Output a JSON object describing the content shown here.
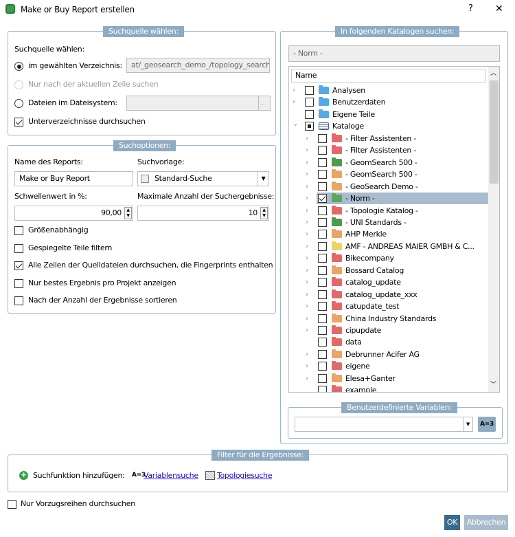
{
  "window": {
    "title": "Make or Buy Report erstellen",
    "help": "?",
    "close": "✕"
  },
  "source": {
    "legend": "Suchquelle wählen:",
    "label": "Suchquelle wählen:",
    "opt_dir": "im gewählten Verzeichnis:",
    "dir_value": "at/_geosearch_demo_/topology_search",
    "opt_row": "Nur nach der aktuellen Zeile suchen",
    "opt_files": "Dateien im Dateisystem:",
    "files_value": "",
    "browse": "...",
    "subdirs": "Unterverzeichnisse durchsuchen",
    "subdirs_checked": true,
    "selected": "dir"
  },
  "options": {
    "legend": "Suchoptionen:",
    "name_label": "Name des Reports:",
    "name_value": "Make or Buy Report",
    "template_label": "Suchvorlage:",
    "template_value": "Standard-Suche",
    "threshold_label": "Schwellenwert in %:",
    "threshold_value": "90,00",
    "max_label": "Maximale Anzahl der Suchergebnisse:",
    "max_value": "10",
    "checks": [
      {
        "label": "Größenabhängig",
        "checked": false
      },
      {
        "label": "Gespiegelte Teile filtern",
        "checked": false
      },
      {
        "label": "Alle Zeilen der Quelldateien durchsuchen, die Fingerprints enthalten",
        "checked": true
      },
      {
        "label": "Nur bestes Ergebnis pro Projekt anzeigen",
        "checked": false
      },
      {
        "label": "Nach der Anzahl der Ergebnisse sortieren",
        "checked": false
      }
    ]
  },
  "catalogs": {
    "legend": "In folgenden Katalogen suchen:",
    "selected_display": "- Norm -",
    "column": "Name",
    "items": [
      {
        "label": "Analysen",
        "level": 0,
        "expand": "collapsed",
        "check": "off",
        "color": "#5aa8e0"
      },
      {
        "label": "Benutzerdaten",
        "level": 0,
        "expand": "collapsed",
        "check": "off",
        "color": "#5aa8e0"
      },
      {
        "label": "Eigene Teile",
        "level": 0,
        "expand": "none",
        "check": "off",
        "color": "#5aa8e0"
      },
      {
        "label": "Kataloge",
        "level": 0,
        "expand": "expanded",
        "check": "partial",
        "color": "stack"
      },
      {
        "label": "- Filter Assistenten -",
        "level": 1,
        "expand": "collapsed",
        "check": "off",
        "color": "#e06a6a"
      },
      {
        "label": "- Filter Assistenten -",
        "level": 1,
        "expand": "collapsed",
        "check": "off",
        "color": "#e06a6a"
      },
      {
        "label": "- GeomSearch 500 -",
        "level": 1,
        "expand": "collapsed",
        "check": "off",
        "color": "#4e9a4e"
      },
      {
        "label": "- GeomSearch 500 -",
        "level": 1,
        "expand": "collapsed",
        "check": "off",
        "color": "#e8a566"
      },
      {
        "label": "- GeoSearch Demo -",
        "level": 1,
        "expand": "collapsed",
        "check": "off",
        "color": "#e8a566"
      },
      {
        "label": "- Norm -",
        "level": 1,
        "expand": "collapsed",
        "check": "on",
        "color": "#5aa85a",
        "selected": true
      },
      {
        "label": "- Topologie Katalog -",
        "level": 1,
        "expand": "collapsed",
        "check": "off",
        "color": "#e06a6a"
      },
      {
        "label": "- UNI Standards -",
        "level": 1,
        "expand": "collapsed",
        "check": "off",
        "color": "#4e9a4e"
      },
      {
        "label": "AHP Merkle",
        "level": 1,
        "expand": "collapsed",
        "check": "off",
        "color": "#e8a566"
      },
      {
        "label": "AMF - ANDREAS MAIER GMBH & C...",
        "level": 1,
        "expand": "collapsed",
        "check": "off",
        "color": "#e8d56a"
      },
      {
        "label": "Bikecompany",
        "level": 1,
        "expand": "collapsed",
        "check": "off",
        "color": "#e06a6a"
      },
      {
        "label": "Bossard Catalog",
        "level": 1,
        "expand": "collapsed",
        "check": "off",
        "color": "#e8a566"
      },
      {
        "label": "catalog_update",
        "level": 1,
        "expand": "collapsed",
        "check": "off",
        "color": "#e06a6a"
      },
      {
        "label": "catalog_update_xxx",
        "level": 1,
        "expand": "collapsed",
        "check": "off",
        "color": "#e06a6a"
      },
      {
        "label": "catupdate_test",
        "level": 1,
        "expand": "collapsed",
        "check": "off",
        "color": "#e06a6a"
      },
      {
        "label": "China Industry Standards",
        "level": 1,
        "expand": "collapsed",
        "check": "off",
        "color": "#e8a566"
      },
      {
        "label": "cipupdate",
        "level": 1,
        "expand": "collapsed",
        "check": "off",
        "color": "#e06a6a"
      },
      {
        "label": "data",
        "level": 1,
        "expand": "none",
        "check": "off",
        "color": "#e06a6a"
      },
      {
        "label": "Debrunner Acifer AG",
        "level": 1,
        "expand": "collapsed",
        "check": "off",
        "color": "#e8a566"
      },
      {
        "label": "eigene",
        "level": 1,
        "expand": "collapsed",
        "check": "off",
        "color": "#e06a6a"
      },
      {
        "label": "Elesa+Ganter",
        "level": 1,
        "expand": "collapsed",
        "check": "off",
        "color": "#e8a566"
      },
      {
        "label": "example",
        "level": 1,
        "expand": "none",
        "check": "off",
        "color": "#e06a6a"
      }
    ]
  },
  "variables": {
    "legend": "Benutzerdefinierte Variablen:",
    "value": "",
    "button": "A=3"
  },
  "filter": {
    "legend": "Filter für die Ergebnisse:",
    "add_label": "Suchfunktion hinzufügen:",
    "var_icon": "A=3",
    "var_link": "Variablensuche",
    "topo_link": "Topologiesuche"
  },
  "preferred": {
    "label": "Nur Vorzugsreihen durchsuchen",
    "checked": false
  },
  "buttons": {
    "ok": "OK",
    "cancel": "Abbrechen"
  },
  "colors": {
    "accent": "#8eabc2",
    "ok": "#3b6a8f",
    "cancel": "#a9bccd",
    "selection": "#a9bccd"
  }
}
